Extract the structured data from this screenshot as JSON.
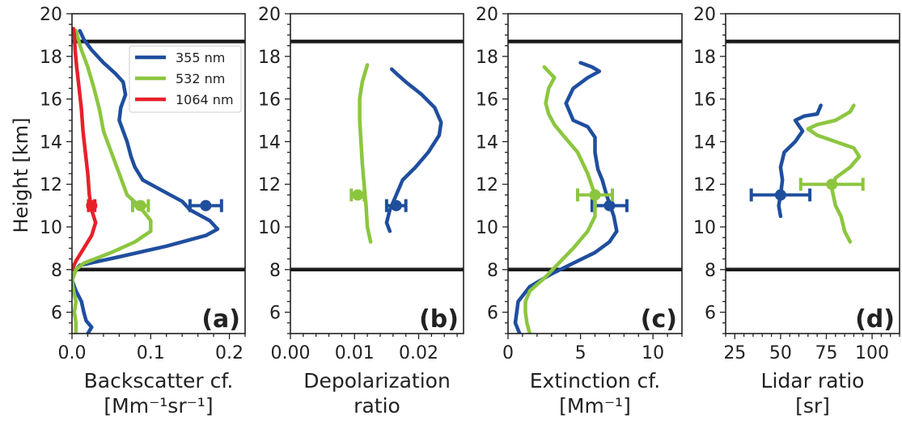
{
  "colors": {
    "c355": "#1f4e9e",
    "c532": "#8cc63f",
    "c1064": "#e8202a",
    "axis": "#222222",
    "ref": "#1a1a1a"
  },
  "shared_y": {
    "label": "Height [km]",
    "lim": [
      5,
      20
    ],
    "ticks": [
      6,
      8,
      10,
      12,
      14,
      16,
      18,
      20
    ],
    "reference_lines": [
      8.0,
      18.7
    ]
  },
  "chart_data": [
    {
      "type": "line",
      "panel_label": "(a)",
      "xlabel_line1": "Backscatter cf.",
      "xlabel_line2": "[Mm⁻¹sr⁻¹]",
      "xlim": [
        0,
        0.22
      ],
      "xticks": [
        0.0,
        0.1,
        0.2
      ],
      "xtick_labels": [
        "0.0",
        "0.1",
        "0.2"
      ],
      "legend": {
        "position": "top-right",
        "entries": [
          "355 nm",
          "532 nm",
          "1064 nm"
        ]
      },
      "series": [
        {
          "name": "355 nm",
          "color_key": "c355",
          "points": [
            [
              0.02,
              5.0
            ],
            [
              0.025,
              5.3
            ],
            [
              0.018,
              5.6
            ],
            [
              0.015,
              6.0
            ],
            [
              0.012,
              6.5
            ],
            [
              0.005,
              7.0
            ],
            [
              0.0,
              7.5
            ],
            [
              0.005,
              8.0
            ],
            [
              0.01,
              8.2
            ],
            [
              0.06,
              8.6
            ],
            [
              0.12,
              9.1
            ],
            [
              0.17,
              9.6
            ],
            [
              0.185,
              9.9
            ],
            [
              0.175,
              10.3
            ],
            [
              0.15,
              10.8
            ],
            [
              0.14,
              11.2
            ],
            [
              0.12,
              11.6
            ],
            [
              0.09,
              12.2
            ],
            [
              0.08,
              12.8
            ],
            [
              0.075,
              13.3
            ],
            [
              0.07,
              14.0
            ],
            [
              0.065,
              14.5
            ],
            [
              0.06,
              15.0
            ],
            [
              0.062,
              15.6
            ],
            [
              0.068,
              16.2
            ],
            [
              0.065,
              16.8
            ],
            [
              0.055,
              17.2
            ],
            [
              0.04,
              17.7
            ],
            [
              0.025,
              18.3
            ],
            [
              0.015,
              18.8
            ],
            [
              0.01,
              19.2
            ]
          ],
          "marker": {
            "x": 0.17,
            "y": 11.0,
            "xerr": 0.02
          }
        },
        {
          "name": "532 nm",
          "color_key": "c532",
          "points": [
            [
              0.005,
              5.0
            ],
            [
              0.005,
              5.5
            ],
            [
              0.003,
              6.0
            ],
            [
              0.005,
              6.5
            ],
            [
              0.002,
              7.0
            ],
            [
              0.0,
              7.5
            ],
            [
              0.005,
              8.0
            ],
            [
              0.015,
              8.3
            ],
            [
              0.05,
              8.8
            ],
            [
              0.08,
              9.3
            ],
            [
              0.1,
              9.8
            ],
            [
              0.1,
              10.3
            ],
            [
              0.085,
              11.0
            ],
            [
              0.07,
              11.5
            ],
            [
              0.06,
              12.5
            ],
            [
              0.05,
              13.5
            ],
            [
              0.04,
              14.5
            ],
            [
              0.035,
              15.5
            ],
            [
              0.028,
              16.5
            ],
            [
              0.02,
              17.5
            ],
            [
              0.012,
              18.3
            ],
            [
              0.008,
              18.8
            ],
            [
              0.005,
              19.2
            ]
          ],
          "marker": {
            "x": 0.087,
            "y": 11.0,
            "xerr": 0.01
          }
        },
        {
          "name": "1064 nm",
          "color_key": "c1064",
          "points": [
            [
              0.0,
              8.0
            ],
            [
              0.005,
              8.4
            ],
            [
              0.015,
              9.0
            ],
            [
              0.025,
              9.6
            ],
            [
              0.03,
              10.2
            ],
            [
              0.025,
              10.8
            ],
            [
              0.022,
              11.5
            ],
            [
              0.02,
              12.5
            ],
            [
              0.017,
              13.5
            ],
            [
              0.014,
              14.5
            ],
            [
              0.012,
              15.5
            ],
            [
              0.009,
              16.5
            ],
            [
              0.006,
              17.5
            ],
            [
              0.004,
              18.3
            ],
            [
              0.003,
              19.0
            ],
            [
              0.002,
              19.3
            ]
          ],
          "marker": {
            "x": 0.025,
            "y": 11.0,
            "xerr": 0.004
          }
        }
      ]
    },
    {
      "type": "line",
      "panel_label": "(b)",
      "xlabel_line1": "Depolarization",
      "xlabel_line2": "ratio",
      "xlim": [
        0.0,
        0.027
      ],
      "xticks": [
        0.0,
        0.01,
        0.02
      ],
      "xtick_labels": [
        "0.00",
        "0.01",
        "0.02"
      ],
      "series": [
        {
          "name": "355 nm",
          "color_key": "c355",
          "points": [
            [
              0.0155,
              9.8
            ],
            [
              0.015,
              10.2
            ],
            [
              0.0155,
              10.8
            ],
            [
              0.0165,
              11.5
            ],
            [
              0.0175,
              12.2
            ],
            [
              0.0195,
              12.8
            ],
            [
              0.0215,
              13.5
            ],
            [
              0.0232,
              14.3
            ],
            [
              0.0235,
              14.9
            ],
            [
              0.0225,
              15.6
            ],
            [
              0.0205,
              16.2
            ],
            [
              0.018,
              16.8
            ],
            [
              0.0165,
              17.2
            ],
            [
              0.0158,
              17.4
            ]
          ],
          "marker": {
            "x": 0.0165,
            "y": 11.0,
            "xerr": 0.0015
          }
        },
        {
          "name": "532 nm",
          "color_key": "c532",
          "points": [
            [
              0.0125,
              9.3
            ],
            [
              0.012,
              10.0
            ],
            [
              0.0118,
              11.0
            ],
            [
              0.0115,
              12.0
            ],
            [
              0.0112,
              13.0
            ],
            [
              0.011,
              14.0
            ],
            [
              0.0108,
              15.0
            ],
            [
              0.0108,
              16.0
            ],
            [
              0.0112,
              16.8
            ],
            [
              0.012,
              17.6
            ]
          ],
          "marker": {
            "x": 0.0105,
            "y": 11.5,
            "xerr": 0.001
          }
        }
      ]
    },
    {
      "type": "line",
      "panel_label": "(c)",
      "xlabel_line1": "Extinction cf.",
      "xlabel_line2": "[Mm⁻¹]",
      "xlim": [
        0,
        12
      ],
      "xticks": [
        0,
        5,
        10
      ],
      "xtick_labels": [
        "0",
        "5",
        "10"
      ],
      "series": [
        {
          "name": "355 nm",
          "color_key": "c355",
          "points": [
            [
              0.8,
              5.0
            ],
            [
              0.5,
              5.5
            ],
            [
              0.7,
              6.5
            ],
            [
              1.5,
              7.2
            ],
            [
              3.0,
              7.8
            ],
            [
              4.5,
              8.3
            ],
            [
              6.0,
              8.8
            ],
            [
              7.0,
              9.3
            ],
            [
              7.5,
              9.8
            ],
            [
              7.3,
              10.5
            ],
            [
              6.8,
              11.5
            ],
            [
              6.5,
              12.2
            ],
            [
              6.2,
              12.7
            ],
            [
              6.0,
              13.5
            ],
            [
              6.0,
              14.2
            ],
            [
              5.5,
              14.7
            ],
            [
              4.5,
              15.0
            ],
            [
              4.0,
              15.8
            ],
            [
              4.5,
              16.5
            ],
            [
              5.5,
              17.0
            ],
            [
              6.3,
              17.3
            ],
            [
              5.8,
              17.5
            ],
            [
              5.0,
              17.7
            ]
          ],
          "marker": {
            "x": 7.0,
            "y": 11.0,
            "xerr": 1.2
          }
        },
        {
          "name": "532 nm",
          "color_key": "c532",
          "points": [
            [
              1.5,
              5.0
            ],
            [
              1.3,
              5.5
            ],
            [
              1.2,
              6.0
            ],
            [
              1.2,
              6.5
            ],
            [
              1.5,
              7.0
            ],
            [
              2.5,
              7.6
            ],
            [
              3.5,
              8.3
            ],
            [
              4.5,
              9.0
            ],
            [
              5.5,
              9.8
            ],
            [
              6.0,
              10.5
            ],
            [
              6.0,
              11.5
            ],
            [
              5.5,
              12.5
            ],
            [
              4.8,
              13.5
            ],
            [
              3.8,
              14.3
            ],
            [
              3.2,
              14.8
            ],
            [
              2.8,
              15.3
            ],
            [
              2.6,
              15.8
            ],
            [
              2.8,
              16.5
            ],
            [
              3.2,
              17.0
            ],
            [
              2.5,
              17.5
            ]
          ],
          "marker": {
            "x": 6.0,
            "y": 11.5,
            "xerr": 1.2
          }
        }
      ]
    },
    {
      "type": "line",
      "panel_label": "(d)",
      "xlabel_line1": "Lidar ratio",
      "xlabel_line2": "[sr]",
      "xlim": [
        20,
        115
      ],
      "xticks": [
        25,
        50,
        75,
        100
      ],
      "xtick_labels": [
        "25",
        "50",
        "75",
        "100"
      ],
      "series": [
        {
          "name": "355 nm",
          "color_key": "c355",
          "points": [
            [
              50,
              10.5
            ],
            [
              49,
              11.0
            ],
            [
              50,
              11.5
            ],
            [
              51,
              12.2
            ],
            [
              50,
              12.8
            ],
            [
              52,
              13.5
            ],
            [
              58,
              14.0
            ],
            [
              62,
              14.5
            ],
            [
              58,
              15.0
            ],
            [
              63,
              15.2
            ],
            [
              70,
              15.3
            ],
            [
              72,
              15.7
            ]
          ],
          "marker": {
            "x": 50,
            "y": 11.5,
            "xerr": 16
          }
        },
        {
          "name": "532 nm",
          "color_key": "c532",
          "points": [
            [
              88,
              9.3
            ],
            [
              85,
              9.8
            ],
            [
              83,
              10.5
            ],
            [
              80,
              11.0
            ],
            [
              78,
              11.8
            ],
            [
              80,
              12.3
            ],
            [
              88,
              12.8
            ],
            [
              93,
              13.3
            ],
            [
              90,
              13.7
            ],
            [
              80,
              14.0
            ],
            [
              70,
              14.3
            ],
            [
              65,
              14.6
            ],
            [
              70,
              14.8
            ],
            [
              80,
              15.0
            ],
            [
              88,
              15.4
            ],
            [
              90,
              15.7
            ]
          ],
          "marker": {
            "x": 78,
            "y": 12.0,
            "xerr": 17
          }
        }
      ]
    }
  ]
}
